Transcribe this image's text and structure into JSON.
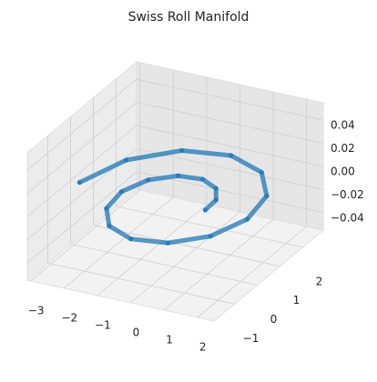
{
  "chart_data": {
    "type": "scatter3d",
    "title": "Swiss Roll Manifold",
    "x": [
      0.94,
      0.91,
      0.58,
      0,
      -0.68,
      -1.27,
      -1.57,
      -1.45,
      -0.89,
      0,
      0.99,
      1.81,
      2.2,
      2.0,
      1.2,
      0,
      -1.31,
      -2.36,
      -2.83
    ],
    "y": [
      0,
      0.52,
      1.0,
      1.26,
      1.18,
      0.73,
      0,
      -0.84,
      -1.54,
      -1.89,
      -1.72,
      -1.05,
      0,
      1.15,
      2.09,
      2.51,
      2.27,
      1.36,
      0
    ],
    "z": [
      0,
      0,
      0,
      0,
      0,
      0,
      0,
      0,
      0,
      0,
      0,
      0,
      0,
      0,
      0,
      0,
      0,
      0,
      0
    ],
    "color": "#1f77b4",
    "xlim": [
      -3.1,
      2.5
    ],
    "ylim": [
      -1.9,
      2.9
    ],
    "zlim": [
      -0.055,
      0.055
    ],
    "xticks": [
      {
        "value": -3,
        "label": "−3"
      },
      {
        "value": -2,
        "label": "−2"
      },
      {
        "value": -1,
        "label": "−1"
      },
      0,
      1,
      2
    ],
    "yticks": [
      {
        "value": -1,
        "label": "−1"
      },
      0,
      1,
      2
    ],
    "zticks": [
      {
        "value": -0.04,
        "label": "−0.04"
      },
      {
        "value": -0.02,
        "label": "−0.02"
      },
      {
        "value": 0,
        "label": "0.00"
      },
      0.02,
      0.04
    ],
    "grid": true
  }
}
